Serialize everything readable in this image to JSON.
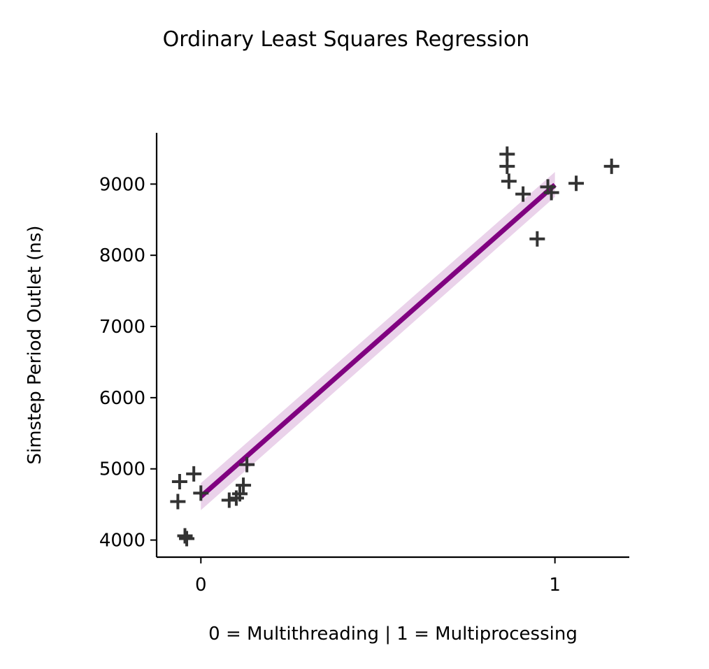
{
  "chart_data": {
    "type": "scatter",
    "title": "Ordinary Least Squares Regression",
    "xlabel": "0 = Multithreading | 1 = Multiprocessing",
    "ylabel": "Simstep Period Outlet (ns)",
    "xlim": [
      -0.125,
      1.21
    ],
    "ylim": [
      3760,
      9720
    ],
    "x_ticks": [
      0,
      1
    ],
    "x_tick_labels": [
      "0",
      "1"
    ],
    "y_ticks": [
      4000,
      5000,
      6000,
      7000,
      8000,
      9000
    ],
    "y_tick_labels": [
      "4000",
      "5000",
      "6000",
      "7000",
      "8000",
      "9000"
    ],
    "grid": false,
    "series": [
      {
        "marker": "+",
        "color": "#333333",
        "points": [
          {
            "x": -0.06,
            "y": 4820
          },
          {
            "x": -0.02,
            "y": 4930
          },
          {
            "x": -0.065,
            "y": 4540
          },
          {
            "x": 0.0,
            "y": 4660
          },
          {
            "x": -0.045,
            "y": 4060
          },
          {
            "x": -0.04,
            "y": 4020
          },
          {
            "x": 0.08,
            "y": 4560
          },
          {
            "x": 0.1,
            "y": 4590
          },
          {
            "x": 0.11,
            "y": 4650
          },
          {
            "x": 0.12,
            "y": 4770
          },
          {
            "x": 0.13,
            "y": 5060
          },
          {
            "x": 0.865,
            "y": 9420
          },
          {
            "x": 0.865,
            "y": 9250
          },
          {
            "x": 0.87,
            "y": 9040
          },
          {
            "x": 0.91,
            "y": 8860
          },
          {
            "x": 0.95,
            "y": 8230
          },
          {
            "x": 0.98,
            "y": 8960
          },
          {
            "x": 0.99,
            "y": 8880
          },
          {
            "x": 1.06,
            "y": 9010
          },
          {
            "x": 1.16,
            "y": 9250
          }
        ]
      }
    ],
    "regression": {
      "color": "#800080",
      "ci_color": "#dcb4dc",
      "x_range": [
        0,
        1
      ],
      "intercept": 4610,
      "slope": 4380,
      "ci": {
        "x": [
          0,
          1
        ],
        "lower": [
          4420,
          8820
        ],
        "upper": [
          4800,
          9170
        ]
      }
    }
  }
}
